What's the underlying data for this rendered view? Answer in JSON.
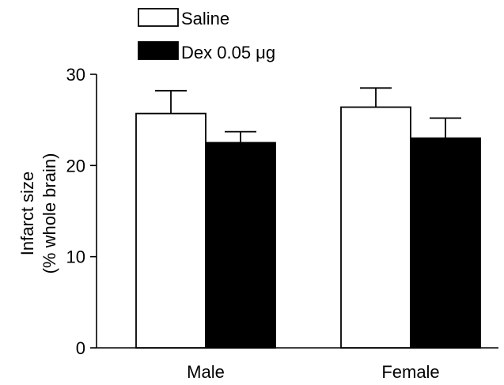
{
  "chart_data": {
    "type": "bar",
    "title": "",
    "xlabel": "",
    "ylabel": "Infarct size",
    "ylabel_sub": "(% whole brain)",
    "categories": [
      "Male",
      "Female"
    ],
    "ylim": [
      0,
      30
    ],
    "yticks": [
      0,
      10,
      20,
      30
    ],
    "grid": false,
    "legend_position": "top-left",
    "series": [
      {
        "name": "Saline",
        "values": [
          25.7,
          26.4
        ],
        "errors": [
          2.5,
          2.1
        ],
        "fill": "#ffffff",
        "stroke": "#000000"
      },
      {
        "name": "Dex 0.05 μg",
        "values": [
          22.5,
          23.0
        ],
        "errors": [
          1.2,
          2.2
        ],
        "fill": "#000000",
        "stroke": "#000000"
      }
    ]
  }
}
